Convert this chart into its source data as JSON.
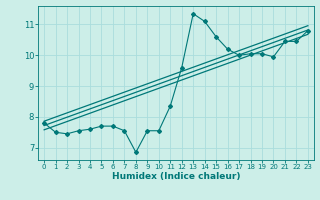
{
  "title": "",
  "xlabel": "Humidex (Indice chaleur)",
  "ylabel": "",
  "x_data": [
    0,
    1,
    2,
    3,
    4,
    5,
    6,
    7,
    8,
    9,
    10,
    11,
    12,
    13,
    14,
    15,
    16,
    17,
    18,
    19,
    20,
    21,
    22,
    23
  ],
  "y_scatter": [
    7.8,
    7.5,
    7.45,
    7.55,
    7.6,
    7.7,
    7.7,
    7.55,
    6.85,
    7.55,
    7.55,
    8.35,
    9.6,
    11.35,
    11.1,
    10.6,
    10.2,
    10.0,
    10.05,
    10.05,
    9.95,
    10.45,
    10.45,
    10.8
  ],
  "reg_lines": [
    {
      "x0": 0,
      "y0": 7.58,
      "x1": 23,
      "y1": 10.68
    },
    {
      "x0": 0,
      "y0": 7.72,
      "x1": 23,
      "y1": 10.82
    },
    {
      "x0": 0,
      "y0": 7.86,
      "x1": 23,
      "y1": 10.96
    }
  ],
  "line_color": "#007878",
  "bg_color": "#cceee8",
  "grid_color": "#aadddd",
  "ylim": [
    6.6,
    11.6
  ],
  "xlim": [
    -0.5,
    23.5
  ],
  "yticks": [
    7,
    8,
    9,
    10,
    11
  ],
  "xticks": [
    0,
    1,
    2,
    3,
    4,
    5,
    6,
    7,
    8,
    9,
    10,
    11,
    12,
    13,
    14,
    15,
    16,
    17,
    18,
    19,
    20,
    21,
    22,
    23
  ]
}
